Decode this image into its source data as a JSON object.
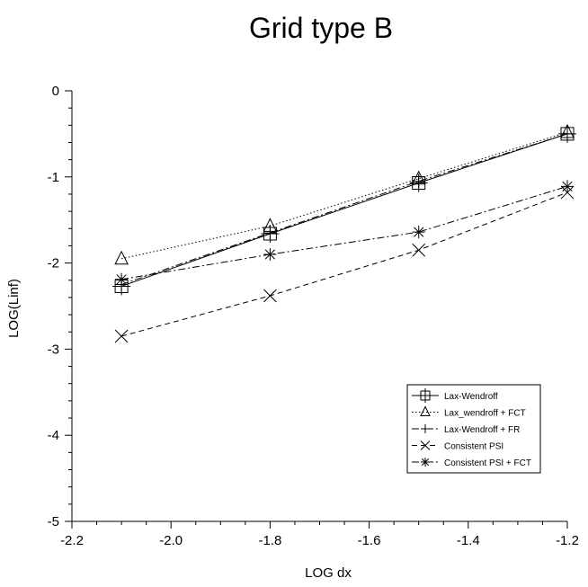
{
  "chart_data": {
    "type": "line",
    "title": "Grid type B",
    "xlabel": "LOG dx",
    "ylabel": "LOG(Linf)",
    "xlim": [
      -2.2,
      -1.2
    ],
    "ylim": [
      -5,
      0
    ],
    "x_ticks": [
      "-2.2",
      "-2.0",
      "-1.8",
      "-1.6",
      "-1.4",
      "-1.2"
    ],
    "y_ticks": [
      "0",
      "-1",
      "-2",
      "-3",
      "-4",
      "-5"
    ],
    "grid": false,
    "legend_position": "bottom-right",
    "series": [
      {
        "name": "Lax-Wendroff",
        "marker": "square-cross",
        "dash": "solid",
        "x": [
          -2.1,
          -1.8,
          -1.5,
          -1.2
        ],
        "y": [
          -2.27,
          -1.66,
          -1.07,
          -0.5
        ]
      },
      {
        "name": "Lax_wendroff + FCT",
        "marker": "triangle",
        "dash": "dotted",
        "x": [
          -2.1,
          -1.8,
          -1.5,
          -1.2
        ],
        "y": [
          -1.95,
          -1.57,
          -1.02,
          -0.48
        ]
      },
      {
        "name": "Lax-Wendroff + FR",
        "marker": "plus",
        "dash": "dashdot",
        "x": [
          -2.1,
          -1.8,
          -1.5,
          -1.2
        ],
        "y": [
          -2.25,
          -1.65,
          -1.05,
          -0.5
        ]
      },
      {
        "name": "Consistent PSI",
        "marker": "x",
        "dash": "dashed",
        "x": [
          -2.1,
          -1.8,
          -1.5,
          -1.2
        ],
        "y": [
          -2.85,
          -2.38,
          -1.85,
          -1.18
        ]
      },
      {
        "name": "Consistent PSI + FCT",
        "marker": "asterisk",
        "dash": "dashdot",
        "x": [
          -2.1,
          -1.8,
          -1.5,
          -1.2
        ],
        "y": [
          -2.19,
          -1.9,
          -1.64,
          -1.11
        ]
      }
    ]
  }
}
